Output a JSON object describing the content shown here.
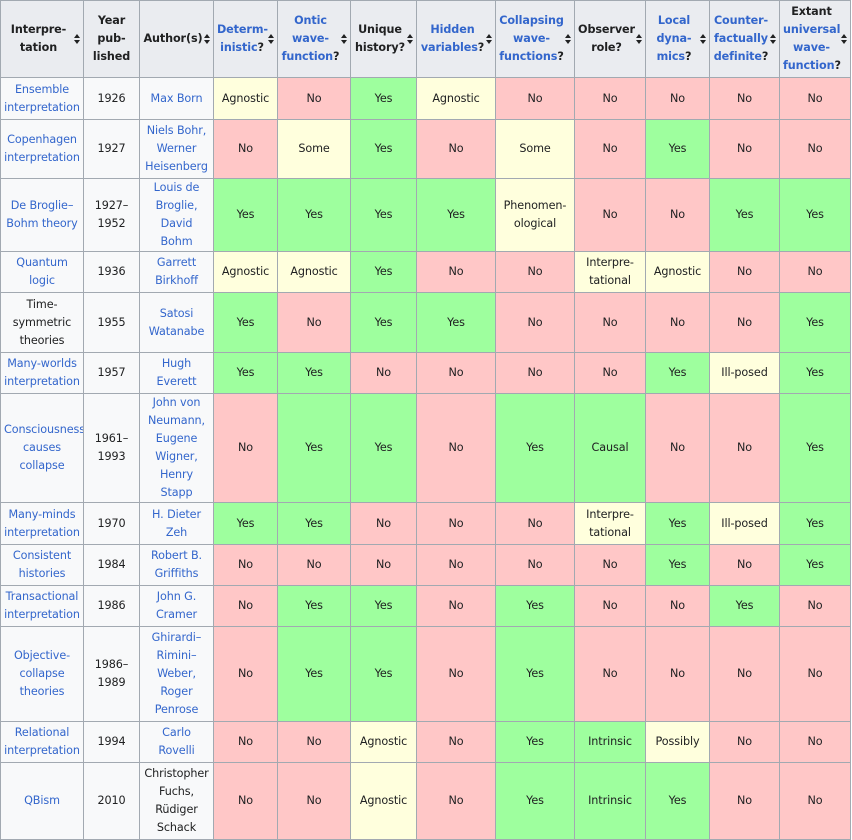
{
  "headers": [
    {
      "label": "Interpre-\ntation",
      "link": false,
      "sortable": true
    },
    {
      "label": "Year\npub-\nlished",
      "link": false,
      "sortable": false
    },
    {
      "label": "Author(s)",
      "link": false,
      "sortable": true
    },
    {
      "label": "Determ-\ninistic",
      "suffix": "?",
      "link": true,
      "sortable": true
    },
    {
      "label": "Ontic\nwave-\nfunction",
      "suffix": "?",
      "link": true,
      "sortable": true
    },
    {
      "label": "Unique\nhistory",
      "suffix": "?",
      "link": false,
      "sortable": true
    },
    {
      "label": "Hidden\nvariables",
      "suffix": "?",
      "link": true,
      "sortable": true
    },
    {
      "label": "Collapsing\nwave-\nfunctions",
      "suffix": "?",
      "link": true,
      "sortable": true
    },
    {
      "label": "Observer\nrole",
      "suffix": "?",
      "link": false,
      "sortable": true
    },
    {
      "label": "Local\ndyna-\nmics",
      "suffix": "?",
      "link": true,
      "sortable": true
    },
    {
      "label": "Counter-\nfactually\ndefinite",
      "suffix": "?",
      "link": true,
      "sortable": true
    },
    {
      "label": "Extant\nuniversal\nwave-\nfunction",
      "suffix": "?",
      "link": true,
      "pre": "Extant",
      "sortable": true
    }
  ],
  "rows": [
    {
      "interp": "Ensemble\ninterpretation",
      "interp_link": true,
      "year": "1926",
      "authors": "Max Born",
      "cells": [
        [
          "Agnostic",
          "mid"
        ],
        [
          "No",
          "no"
        ],
        [
          "Yes",
          "yes"
        ],
        [
          "Agnostic",
          "mid"
        ],
        [
          "No",
          "no"
        ],
        [
          "No",
          "no"
        ],
        [
          "No",
          "no"
        ],
        [
          "No",
          "no"
        ],
        [
          "No",
          "no"
        ]
      ],
      "height": 42
    },
    {
      "interp": "Copenhagen\ninterpretation",
      "interp_link": true,
      "year": "1927",
      "authors": "Niels Bohr,\nWerner\nHeisenberg",
      "cells": [
        [
          "No",
          "no"
        ],
        [
          "Some",
          "mid"
        ],
        [
          "Yes",
          "yes"
        ],
        [
          "No",
          "no"
        ],
        [
          "Some",
          "mid"
        ],
        [
          "No",
          "no"
        ],
        [
          "Yes",
          "yes"
        ],
        [
          "No",
          "no"
        ],
        [
          "No",
          "no"
        ]
      ],
      "height": 59
    },
    {
      "interp": "De Broglie–\nBohm theory",
      "interp_link": true,
      "year": "1927–\n1952",
      "authors": "Louis de\nBroglie,\nDavid Bohm",
      "cells": [
        [
          "Yes",
          "yes"
        ],
        [
          "Yes",
          "yes"
        ],
        [
          "Yes",
          "yes"
        ],
        [
          "Yes",
          "yes"
        ],
        [
          "Phenomen-\nological",
          "mid"
        ],
        [
          "No",
          "no"
        ],
        [
          "No",
          "no"
        ],
        [
          "Yes",
          "yes"
        ],
        [
          "Yes",
          "yes"
        ]
      ],
      "height": 59
    },
    {
      "interp": "Quantum logic",
      "interp_link": true,
      "year": "1936",
      "authors": "Garrett\nBirkhoff",
      "cells": [
        [
          "Agnostic",
          "mid"
        ],
        [
          "Agnostic",
          "mid"
        ],
        [
          "Yes",
          "yes"
        ],
        [
          "No",
          "no"
        ],
        [
          "No",
          "no"
        ],
        [
          "Interpre-\ntational",
          "mid"
        ],
        [
          "Agnostic",
          "mid"
        ],
        [
          "No",
          "no"
        ],
        [
          "No",
          "no"
        ]
      ],
      "height": 41
    },
    {
      "interp": "Time-\nsymmetric\ntheories",
      "interp_link": false,
      "year": "1955",
      "authors": "Satosi\nWatanabe",
      "cells": [
        [
          "Yes",
          "yes"
        ],
        [
          "No",
          "no"
        ],
        [
          "Yes",
          "yes"
        ],
        [
          "Yes",
          "yes"
        ],
        [
          "No",
          "no"
        ],
        [
          "No",
          "no"
        ],
        [
          "No",
          "no"
        ],
        [
          "No",
          "no"
        ],
        [
          "Yes",
          "yes"
        ]
      ],
      "height": 60
    },
    {
      "interp": "Many-worlds\ninterpretation",
      "interp_link": true,
      "year": "1957",
      "authors": "Hugh\nEverett",
      "cells": [
        [
          "Yes",
          "yes"
        ],
        [
          "Yes",
          "yes"
        ],
        [
          "No",
          "no"
        ],
        [
          "No",
          "no"
        ],
        [
          "No",
          "no"
        ],
        [
          "No",
          "no"
        ],
        [
          "Yes",
          "yes"
        ],
        [
          "Ill-posed",
          "mid"
        ],
        [
          "Yes",
          "yes"
        ]
      ],
      "height": 41
    },
    {
      "interp": "Consciousness\ncauses\ncollapse",
      "interp_link": true,
      "year": "1961–\n1993",
      "authors": "John von\nNeumann,\nEugene\nWigner,\nHenry Stapp",
      "cells": [
        [
          "No",
          "no"
        ],
        [
          "Yes",
          "yes"
        ],
        [
          "Yes",
          "yes"
        ],
        [
          "No",
          "no"
        ],
        [
          "Yes",
          "yes"
        ],
        [
          "Causal",
          "yes"
        ],
        [
          "No",
          "no"
        ],
        [
          "No",
          "no"
        ],
        [
          "Yes",
          "yes"
        ]
      ],
      "height": 95
    },
    {
      "interp": "Many-minds\ninterpretation",
      "interp_link": true,
      "year": "1970",
      "authors": "H. Dieter\nZeh",
      "cells": [
        [
          "Yes",
          "yes"
        ],
        [
          "Yes",
          "yes"
        ],
        [
          "No",
          "no"
        ],
        [
          "No",
          "no"
        ],
        [
          "No",
          "no"
        ],
        [
          "Interpre-\ntational",
          "mid"
        ],
        [
          "Yes",
          "yes"
        ],
        [
          "Ill-posed",
          "mid"
        ],
        [
          "Yes",
          "yes"
        ]
      ],
      "height": 42
    },
    {
      "interp": "Consistent\nhistories",
      "interp_link": true,
      "year": "1984",
      "authors": "Robert B.\nGriffiths",
      "cells": [
        [
          "No",
          "no"
        ],
        [
          "No",
          "no"
        ],
        [
          "No",
          "no"
        ],
        [
          "No",
          "no"
        ],
        [
          "No",
          "no"
        ],
        [
          "No",
          "no"
        ],
        [
          "Yes",
          "yes"
        ],
        [
          "No",
          "no"
        ],
        [
          "Yes",
          "yes"
        ]
      ],
      "height": 41
    },
    {
      "interp": "Transactional\ninterpretation",
      "interp_link": true,
      "year": "1986",
      "authors": "John G.\nCramer",
      "cells": [
        [
          "No",
          "no"
        ],
        [
          "Yes",
          "yes"
        ],
        [
          "Yes",
          "yes"
        ],
        [
          "No",
          "no"
        ],
        [
          "Yes",
          "yes"
        ],
        [
          "No",
          "no"
        ],
        [
          "No",
          "no"
        ],
        [
          "Yes",
          "yes"
        ],
        [
          "No",
          "no"
        ]
      ],
      "height": 41
    },
    {
      "interp": "Objective-\ncollapse\ntheories",
      "interp_link": true,
      "year": "1986–\n1989",
      "authors": "Ghirardi–\nRimini–\nWeber,\nRoger\nPenrose",
      "cells": [
        [
          "No",
          "no"
        ],
        [
          "Yes",
          "yes"
        ],
        [
          "Yes",
          "yes"
        ],
        [
          "No",
          "no"
        ],
        [
          "Yes",
          "yes"
        ],
        [
          "No",
          "no"
        ],
        [
          "No",
          "no"
        ],
        [
          "No",
          "no"
        ],
        [
          "No",
          "no"
        ]
      ],
      "height": 95
    },
    {
      "interp": "Relational\ninterpretation",
      "interp_link": true,
      "year": "1994",
      "authors": "Carlo\nRovelli",
      "cells": [
        [
          "No",
          "no"
        ],
        [
          "No",
          "no"
        ],
        [
          "Agnostic",
          "mid"
        ],
        [
          "No",
          "no"
        ],
        [
          "Yes",
          "yes"
        ],
        [
          "Intrinsic",
          "yes"
        ],
        [
          "Possibly",
          "mid"
        ],
        [
          "No",
          "no"
        ],
        [
          "No",
          "no"
        ]
      ],
      "height": 41
    },
    {
      "interp": "QBism",
      "interp_link": true,
      "year": "2010",
      "authors": "Christopher\nFuchs,\nRüdiger\nSchack",
      "authors_link": false,
      "cells": [
        [
          "No",
          "no"
        ],
        [
          "No",
          "no"
        ],
        [
          "Agnostic",
          "mid"
        ],
        [
          "No",
          "no"
        ],
        [
          "Yes",
          "yes"
        ],
        [
          "Intrinsic",
          "yes"
        ],
        [
          "Yes",
          "yes"
        ],
        [
          "No",
          "no"
        ],
        [
          "No",
          "no"
        ]
      ],
      "height": 77
    }
  ],
  "colors": {
    "yes": "#9eff9e",
    "no": "#ffc7c7",
    "mid": "#ffffdd",
    "header": "#eaecf0",
    "link": "#3366cc",
    "border": "#a2a9b1"
  }
}
